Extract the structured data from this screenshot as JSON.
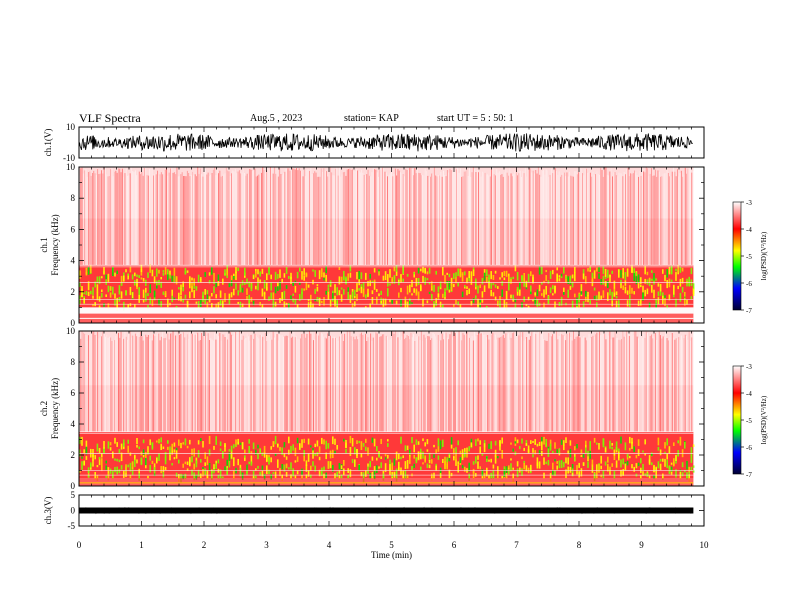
{
  "header": {
    "title": "VLF Spectra",
    "date": "Aug.5 , 2023",
    "station": "station= KAP",
    "start_ut": "start UT = 5 : 50: 1"
  },
  "chart_data": [
    {
      "type": "line",
      "panel": "ch1-waveform",
      "ylabel": "ch.1(V)",
      "ylim": [
        -10,
        10
      ],
      "y_ticks": [
        "10",
        "-10"
      ],
      "x_range_min": [
        0,
        10
      ],
      "data_end_min": 9.83,
      "note": "dense waveform, amplitude roughly -6 to +6 V"
    },
    {
      "type": "heatmap",
      "panel": "ch1-spectrogram",
      "ylabel": "ch.1 Frequency (kHz)",
      "ylim": [
        0,
        10
      ],
      "y_ticks": [
        "0",
        "2",
        "4",
        "6",
        "8",
        "10"
      ],
      "colorbar_label": "log(PSD)(V²/Hz)",
      "colorbar_range": [
        -7,
        -3
      ],
      "colorbar_ticks": [
        "-3",
        "-4",
        "-5",
        "-6",
        "-7"
      ],
      "bands_khz": {
        "strong": [
          1.0,
          3.5
        ],
        "edge": 3.7,
        "low_gap": [
          0.6,
          1.0
        ]
      }
    },
    {
      "type": "heatmap",
      "panel": "ch2-spectrogram",
      "ylabel": "ch.2 Frequency (kHz)",
      "ylim": [
        0,
        10
      ],
      "y_ticks": [
        "0",
        "2",
        "4",
        "6",
        "8",
        "10"
      ],
      "colorbar_label": "log(PSD)(V²/Hz)",
      "colorbar_range": [
        -7,
        -3
      ],
      "colorbar_ticks": [
        "-3",
        "-4",
        "-5",
        "-6",
        "-7"
      ],
      "bands_khz": {
        "strong": [
          0.5,
          3.0
        ],
        "edge": 3.5
      }
    },
    {
      "type": "line",
      "panel": "ch3-waveform",
      "ylabel": "ch.3(V)",
      "ylim": [
        -5,
        5
      ],
      "y_ticks": [
        "5",
        "0",
        "-5"
      ],
      "note": "narrow band near 0 V"
    }
  ],
  "x_axis": {
    "label": "Time (min)",
    "range": [
      0,
      10
    ],
    "ticks": [
      "0",
      "1",
      "2",
      "3",
      "4",
      "5",
      "6",
      "7",
      "8",
      "9",
      "10"
    ]
  }
}
